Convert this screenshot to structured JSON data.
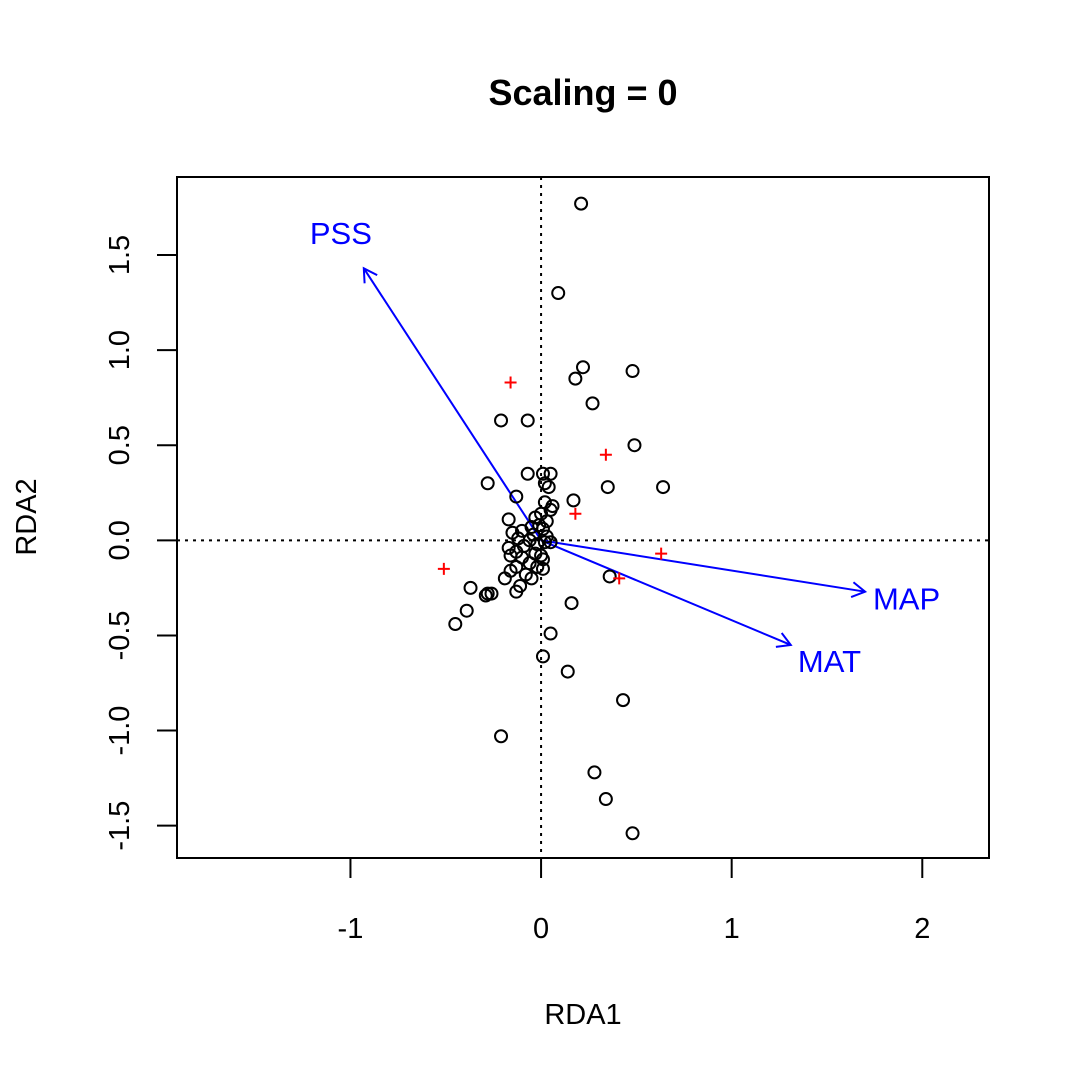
{
  "chart_data": {
    "type": "scatter",
    "title": "Scaling = 0",
    "xlabel": "RDA1",
    "ylabel": "RDA2",
    "xlim": [
      -1.91,
      2.35
    ],
    "ylim": [
      -1.67,
      1.91
    ],
    "x_ticks": [
      -1,
      0,
      1,
      2
    ],
    "x_tick_labels": [
      "-1",
      "0",
      "1",
      "2"
    ],
    "y_ticks": [
      -1.5,
      -1.0,
      -0.5,
      0.0,
      0.5,
      1.0,
      1.5
    ],
    "y_tick_labels": [
      "-1.5",
      "-1.0",
      "-0.5",
      "0.0",
      "0.5",
      "1.0",
      "1.5"
    ],
    "reference_lines": {
      "x": 0,
      "y": 0,
      "style": "dotted"
    },
    "grid": false,
    "legend": "none",
    "sites": {
      "marker": "open-circle",
      "color": "#000000",
      "points": [
        [
          0.21,
          1.77
        ],
        [
          0.09,
          1.3
        ],
        [
          0.22,
          0.91
        ],
        [
          0.18,
          0.85
        ],
        [
          0.48,
          0.89
        ],
        [
          0.27,
          0.72
        ],
        [
          -0.21,
          0.63
        ],
        [
          -0.07,
          0.63
        ],
        [
          0.49,
          0.5
        ],
        [
          -0.28,
          0.3
        ],
        [
          0.35,
          0.28
        ],
        [
          0.64,
          0.28
        ],
        [
          -0.07,
          0.35
        ],
        [
          0.01,
          0.35
        ],
        [
          0.05,
          0.35
        ],
        [
          0.02,
          0.3
        ],
        [
          0.04,
          0.28
        ],
        [
          0.17,
          0.21
        ],
        [
          -0.13,
          0.23
        ],
        [
          0.02,
          0.2
        ],
        [
          0.06,
          0.18
        ],
        [
          0.05,
          0.16
        ],
        [
          0.0,
          0.14
        ],
        [
          -0.03,
          0.12
        ],
        [
          -0.17,
          0.11
        ],
        [
          0.03,
          0.1
        ],
        [
          -0.01,
          0.08
        ],
        [
          -0.05,
          0.07
        ],
        [
          0.01,
          0.06
        ],
        [
          -0.1,
          0.05
        ],
        [
          -0.15,
          0.04
        ],
        [
          -0.04,
          0.03
        ],
        [
          0.03,
          0.02
        ],
        [
          -0.12,
          0.01
        ],
        [
          -0.06,
          0.0
        ],
        [
          0.02,
          -0.01
        ],
        [
          0.05,
          -0.01
        ],
        [
          -0.02,
          -0.02
        ],
        [
          -0.09,
          -0.03
        ],
        [
          -0.17,
          -0.04
        ],
        [
          -0.13,
          -0.06
        ],
        [
          -0.03,
          -0.07
        ],
        [
          0.0,
          -0.08
        ],
        [
          -0.16,
          -0.08
        ],
        [
          -0.1,
          -0.09
        ],
        [
          0.01,
          -0.1
        ],
        [
          -0.06,
          -0.12
        ],
        [
          -0.13,
          -0.14
        ],
        [
          -0.02,
          -0.14
        ],
        [
          0.01,
          -0.15
        ],
        [
          -0.16,
          -0.16
        ],
        [
          -0.08,
          -0.18
        ],
        [
          -0.05,
          -0.2
        ],
        [
          -0.19,
          -0.2
        ],
        [
          -0.11,
          -0.24
        ],
        [
          -0.37,
          -0.25
        ],
        [
          -0.13,
          -0.27
        ],
        [
          -0.26,
          -0.28
        ],
        [
          -0.28,
          -0.28
        ],
        [
          -0.29,
          -0.29
        ],
        [
          0.36,
          -0.19
        ],
        [
          0.16,
          -0.33
        ],
        [
          -0.39,
          -0.37
        ],
        [
          -0.45,
          -0.44
        ],
        [
          0.05,
          -0.49
        ],
        [
          0.01,
          -0.61
        ],
        [
          0.14,
          -0.69
        ],
        [
          0.43,
          -0.84
        ],
        [
          -0.21,
          -1.03
        ],
        [
          0.28,
          -1.22
        ],
        [
          0.34,
          -1.36
        ],
        [
          0.48,
          -1.54
        ]
      ]
    },
    "species": {
      "marker": "plus",
      "color": "#ff0000",
      "points": [
        [
          -0.16,
          0.83
        ],
        [
          0.34,
          0.45
        ],
        [
          0.18,
          0.14
        ],
        [
          0.63,
          -0.07
        ],
        [
          -0.51,
          -0.15
        ],
        [
          0.41,
          -0.2
        ]
      ]
    },
    "biplot_arrows": {
      "color": "#0000ff",
      "arrows": [
        {
          "label": "PSS",
          "x": -0.93,
          "y": 1.43
        },
        {
          "label": "MAP",
          "x": 1.7,
          "y": -0.27
        },
        {
          "label": "MAT",
          "x": 1.31,
          "y": -0.55
        }
      ]
    }
  }
}
